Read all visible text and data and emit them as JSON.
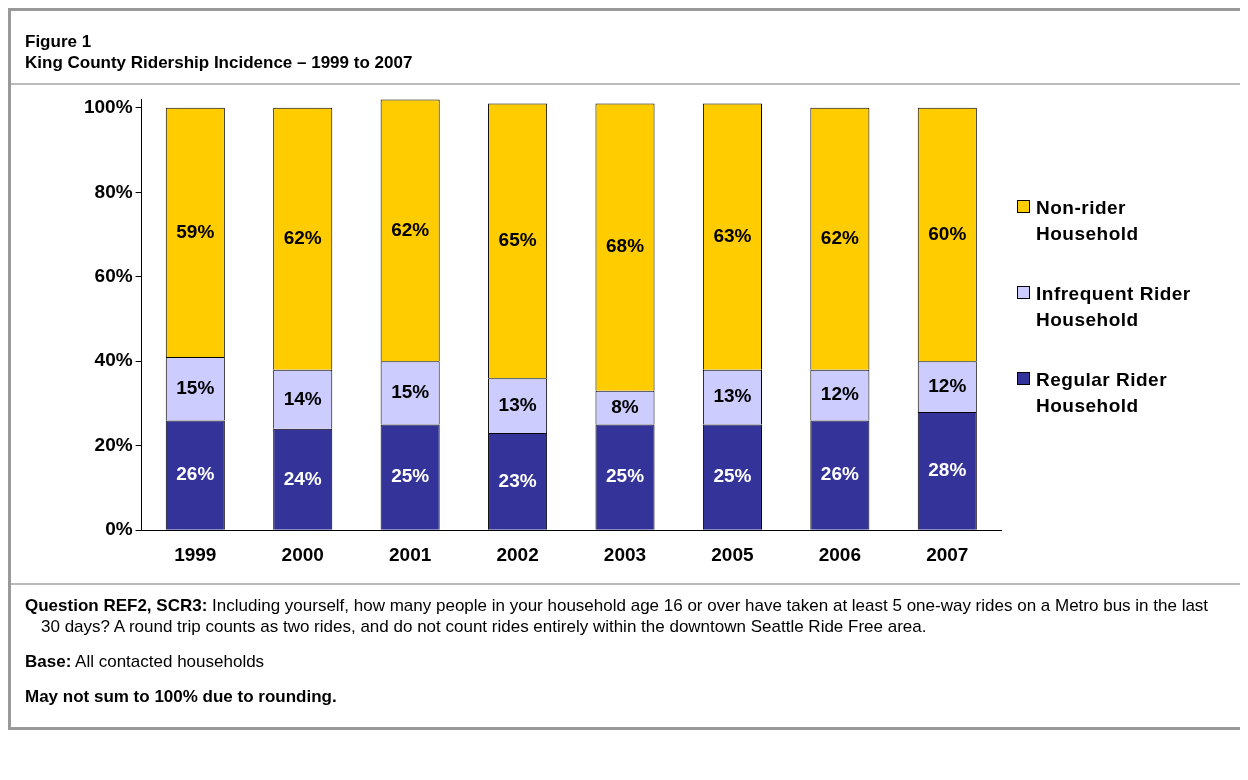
{
  "chart_data": {
    "type": "bar",
    "title": "Figure 1",
    "subtitle": "King County Ridership Incidence – 1999 to 2007",
    "categories": [
      "1999",
      "2000",
      "2001",
      "2002",
      "2003",
      "2005",
      "2006",
      "2007"
    ],
    "stacked": true,
    "series": [
      {
        "name": "Regular Rider Household",
        "color": "#333399",
        "values": [
          26,
          24,
          25,
          23,
          25,
          25,
          26,
          28
        ],
        "value_labels": [
          "26%",
          "24%",
          "25%",
          "23%",
          "25%",
          "25%",
          "26%",
          "28%"
        ]
      },
      {
        "name": "Infrequent Rider Household",
        "color": "#ccccff",
        "values": [
          15,
          14,
          15,
          13,
          8,
          13,
          12,
          12
        ],
        "value_labels": [
          "15%",
          "14%",
          "15%",
          "13%",
          "8%",
          "13%",
          "12%",
          "12%"
        ]
      },
      {
        "name": "Non-rider Household",
        "color": "#ffcc00",
        "values": [
          59,
          62,
          62,
          65,
          68,
          63,
          62,
          60
        ],
        "value_labels": [
          "59%",
          "62%",
          "62%",
          "65%",
          "68%",
          "63%",
          "62%",
          "60%"
        ]
      }
    ],
    "ylim": [
      0,
      102
    ],
    "yticks": [
      {
        "value": 0,
        "label": "0%"
      },
      {
        "value": 20,
        "label": "20%"
      },
      {
        "value": 40,
        "label": "40%"
      },
      {
        "value": 60,
        "label": "60%"
      },
      {
        "value": 80,
        "label": "80%"
      },
      {
        "value": 100,
        "label": "100%"
      }
    ],
    "legend": "right",
    "grid": false,
    "annotations": [
      "Question REF2, SCR3:  Including yourself, how many people in your household age 16 or over have taken at least 5 one-way rides on a Metro bus in the last 30 days?  A round trip counts as two rides, and do not count rides entirely within the downtown Seattle Ride Free area.",
      "Base:  All contacted households",
      "May not sum to 100% due to rounding."
    ]
  }
}
